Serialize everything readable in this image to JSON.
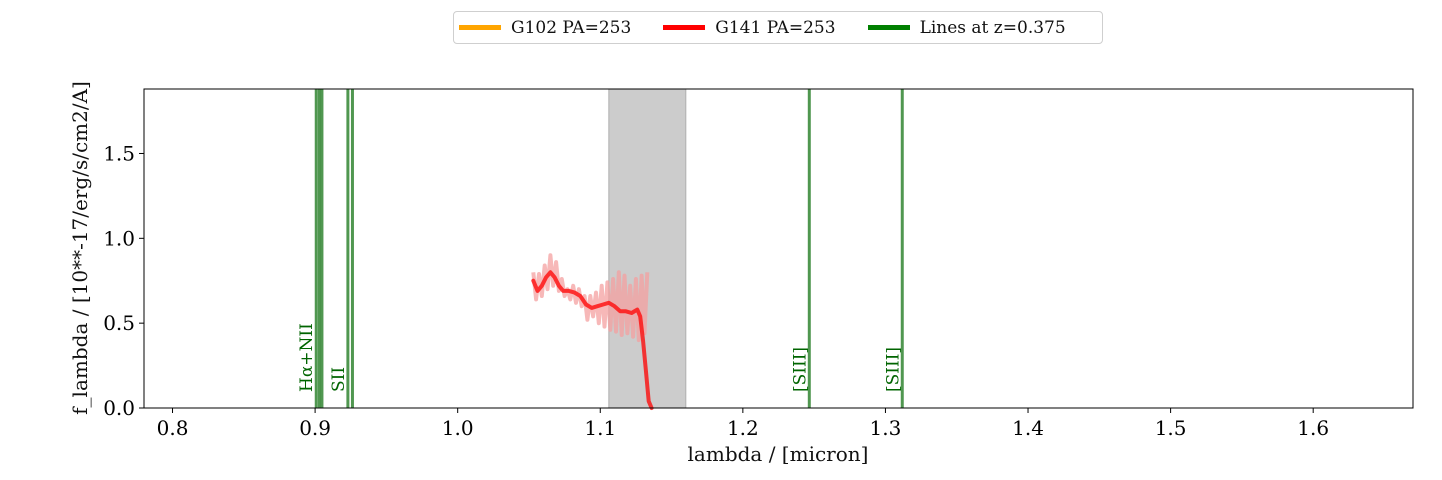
{
  "chart_data": {
    "type": "line",
    "xlabel": "lambda / [micron]",
    "ylabel": "f_lambda / [10**-17/erg/s/cm2/A]",
    "xlim": [
      0.78,
      1.67
    ],
    "ylim": [
      0.0,
      1.88
    ],
    "xticks": [
      "0.8",
      "0.9",
      "1.0",
      "1.1",
      "1.2",
      "1.3",
      "1.4",
      "1.5",
      "1.6"
    ],
    "yticks": [
      "0.0",
      "0.5",
      "1.0",
      "1.5"
    ],
    "grid": false,
    "legend_position": "top-center",
    "legend": [
      {
        "name": "G102 PA=253",
        "color": "#ffa500"
      },
      {
        "name": "G141 PA=253",
        "color": "#ff0000"
      },
      {
        "name": "Lines at z=0.375",
        "color": "#008000"
      }
    ],
    "shaded_region": {
      "x": [
        1.106,
        1.16
      ],
      "color": "#cccccc"
    },
    "series": [
      {
        "name": "G141 PA=253",
        "color": "#ff0000",
        "x": [
          1.053,
          1.056,
          1.059,
          1.062,
          1.065,
          1.068,
          1.071,
          1.074,
          1.078,
          1.082,
          1.086,
          1.09,
          1.094,
          1.098,
          1.102,
          1.106,
          1.11,
          1.114,
          1.118,
          1.122,
          1.126,
          1.128,
          1.13,
          1.132,
          1.134,
          1.136
        ],
        "y": [
          0.75,
          0.69,
          0.72,
          0.77,
          0.8,
          0.77,
          0.72,
          0.69,
          0.69,
          0.68,
          0.66,
          0.61,
          0.59,
          0.6,
          0.61,
          0.62,
          0.6,
          0.57,
          0.57,
          0.56,
          0.58,
          0.54,
          0.4,
          0.22,
          0.04,
          -0.1
        ]
      }
    ],
    "raw_spectrum": {
      "color": "#f4a0a0",
      "x": [
        1.053,
        1.055,
        1.057,
        1.059,
        1.061,
        1.063,
        1.065,
        1.067,
        1.069,
        1.071,
        1.073,
        1.075,
        1.077,
        1.079,
        1.081,
        1.083,
        1.085,
        1.087,
        1.089,
        1.091,
        1.093,
        1.095,
        1.097,
        1.099,
        1.101,
        1.103,
        1.105,
        1.107,
        1.109,
        1.111,
        1.113,
        1.115,
        1.117,
        1.119,
        1.121,
        1.123,
        1.125,
        1.127,
        1.129,
        1.131,
        1.133
      ],
      "y": [
        0.8,
        0.64,
        0.79,
        0.66,
        0.84,
        0.7,
        0.9,
        0.72,
        0.86,
        0.69,
        0.76,
        0.66,
        0.7,
        0.64,
        0.72,
        0.62,
        0.7,
        0.6,
        0.66,
        0.52,
        0.66,
        0.54,
        0.68,
        0.5,
        0.72,
        0.48,
        0.74,
        0.46,
        0.76,
        0.45,
        0.8,
        0.43,
        0.78,
        0.44,
        0.72,
        0.42,
        0.76,
        0.4,
        0.78,
        0.44,
        0.8
      ]
    },
    "lines": [
      {
        "x": 0.9008,
        "label": "Hα+NII"
      },
      {
        "x": 0.903,
        "label": ""
      },
      {
        "x": 0.9048,
        "label": ""
      },
      {
        "x": 0.923,
        "label": "SII"
      },
      {
        "x": 0.9262,
        "label": ""
      },
      {
        "x": 1.2466,
        "label": "[SIII]"
      },
      {
        "x": 1.3118,
        "label": "[SIII]"
      }
    ]
  }
}
